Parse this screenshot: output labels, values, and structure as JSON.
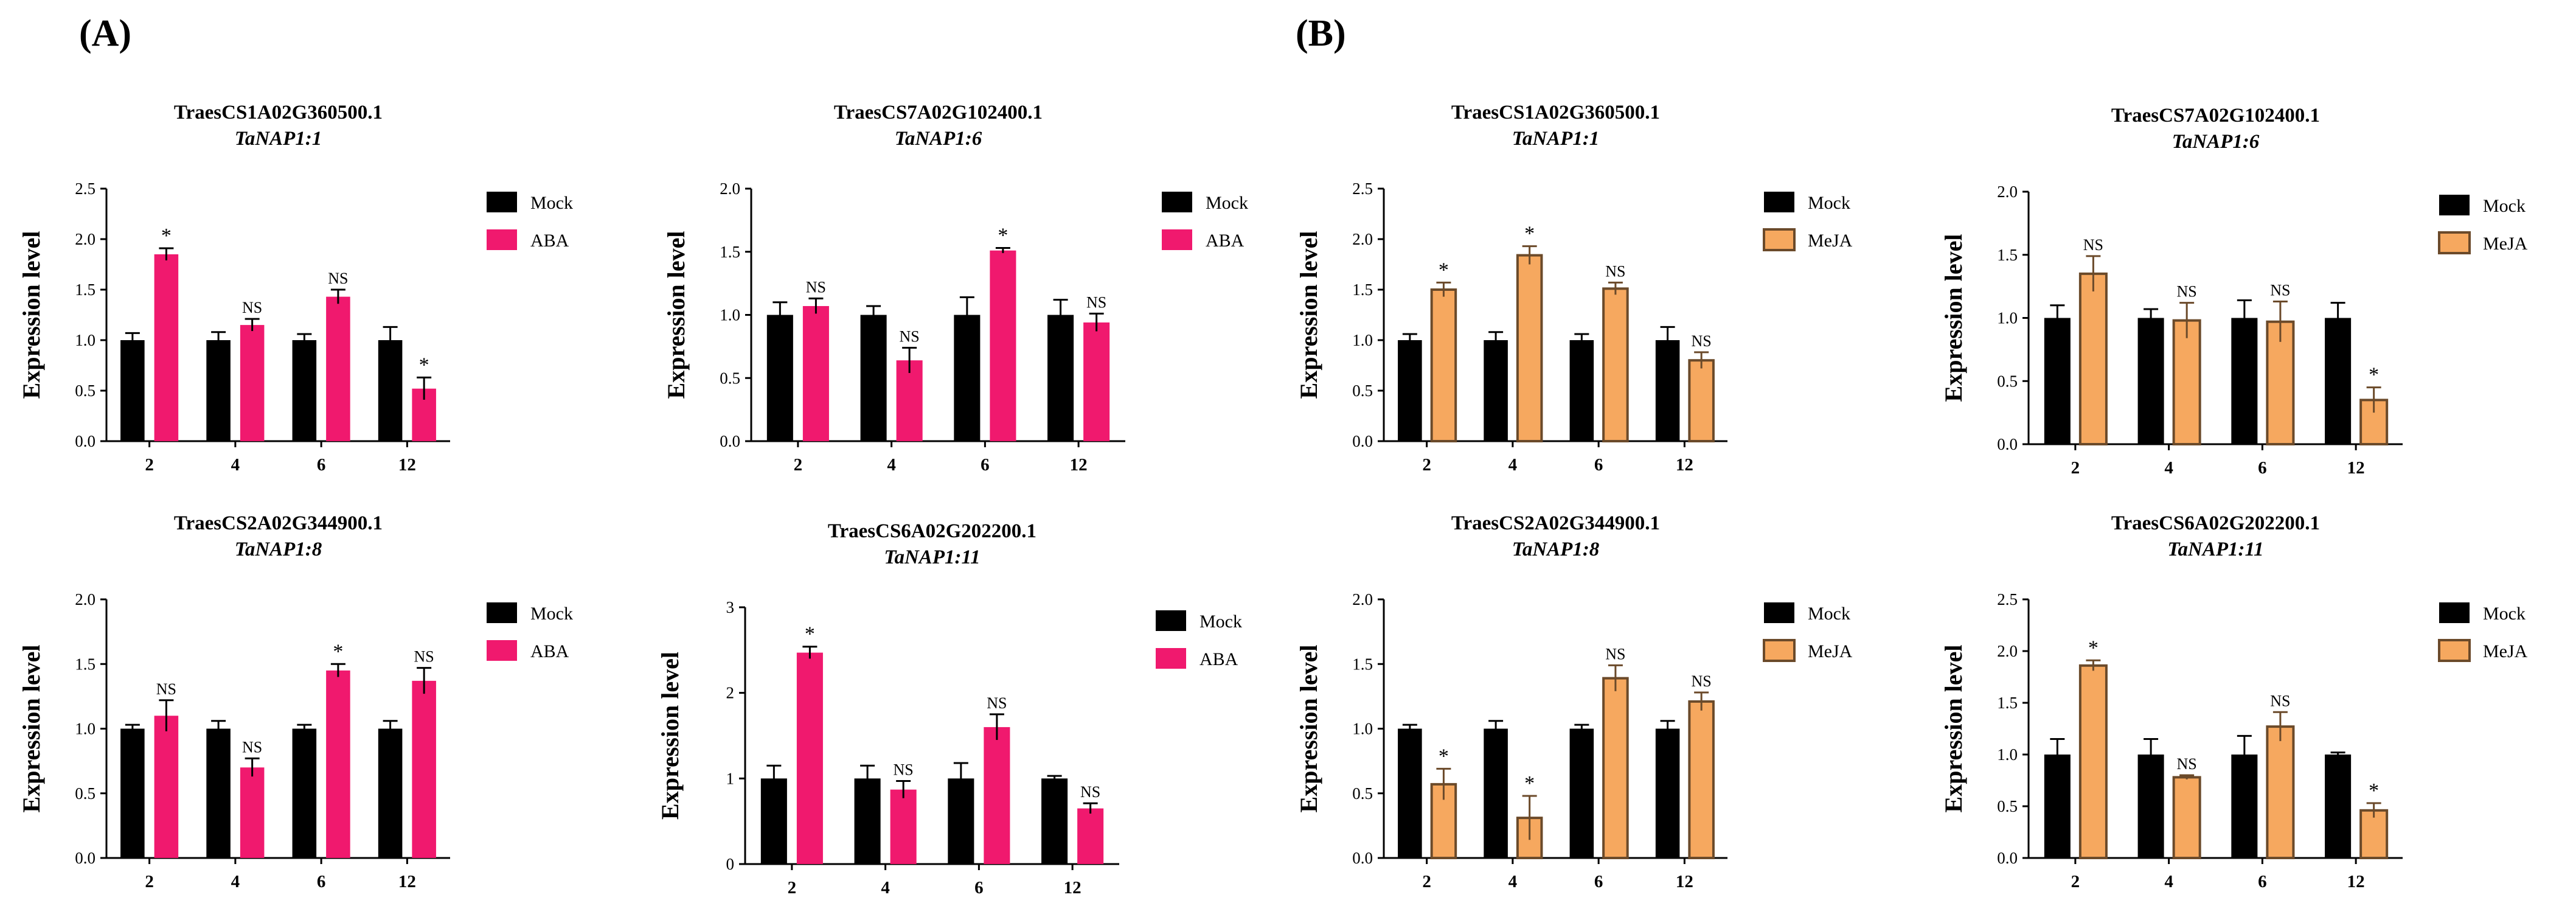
{
  "panels": [
    {
      "label": "(A)"
    },
    {
      "label": "(B)"
    }
  ],
  "common": {
    "ylabel": "Expression level",
    "categories": [
      "2",
      "4",
      "6",
      "12"
    ]
  },
  "chart_data": [
    {
      "type": "bar",
      "panel": "(A)",
      "position": "top-left",
      "title": "TraesCS1A02G360500.1",
      "subtitle": "TaNAP1:1",
      "xlabel": "",
      "ylabel": "Expression level",
      "categories": [
        "2",
        "4",
        "6",
        "12"
      ],
      "ylim": [
        0,
        2.5
      ],
      "yticks": [
        "0.0",
        "0.5",
        "1.0",
        "1.5",
        "2.0",
        "2.5"
      ],
      "series": [
        {
          "name": "Mock",
          "color": "#000000",
          "values": [
            1.0,
            1.0,
            1.0,
            1.0
          ],
          "errors": [
            0.07,
            0.08,
            0.06,
            0.13
          ]
        },
        {
          "name": "ABA",
          "color": "#f0196e",
          "values": [
            1.85,
            1.15,
            1.43,
            0.52
          ],
          "errors": [
            0.06,
            0.06,
            0.07,
            0.11
          ],
          "annotations": [
            "*",
            "NS",
            "NS",
            "*"
          ]
        }
      ],
      "legend": "right"
    },
    {
      "type": "bar",
      "panel": "(A)",
      "position": "top-right",
      "title": "TraesCS7A02G102400.1",
      "subtitle": "TaNAP1:6",
      "xlabel": "",
      "ylabel": "Expression level",
      "categories": [
        "2",
        "4",
        "6",
        "12"
      ],
      "ylim": [
        0,
        2.0
      ],
      "yticks": [
        "0.0",
        "0.5",
        "1.0",
        "1.5",
        "2.0"
      ],
      "series": [
        {
          "name": "Mock",
          "color": "#000000",
          "values": [
            1.0,
            1.0,
            1.0,
            1.0
          ],
          "errors": [
            0.1,
            0.07,
            0.14,
            0.12
          ]
        },
        {
          "name": "ABA",
          "color": "#f0196e",
          "values": [
            1.07,
            0.64,
            1.51,
            0.94
          ],
          "errors": [
            0.06,
            0.1,
            0.02,
            0.07
          ],
          "annotations": [
            "NS",
            "NS",
            "*",
            "NS"
          ]
        }
      ],
      "legend": "right"
    },
    {
      "type": "bar",
      "panel": "(A)",
      "position": "bottom-left",
      "title": "TraesCS2A02G344900.1",
      "subtitle": "TaNAP1:8",
      "xlabel": "",
      "ylabel": "Expression level",
      "categories": [
        "2",
        "4",
        "6",
        "12"
      ],
      "ylim": [
        0,
        2.0
      ],
      "yticks": [
        "0.0",
        "0.5",
        "1.0",
        "1.5",
        "2.0"
      ],
      "series": [
        {
          "name": "Mock",
          "color": "#000000",
          "values": [
            1.0,
            1.0,
            1.0,
            1.0
          ],
          "errors": [
            0.03,
            0.06,
            0.03,
            0.06
          ]
        },
        {
          "name": "ABA",
          "color": "#f0196e",
          "values": [
            1.1,
            0.7,
            1.45,
            1.37
          ],
          "errors": [
            0.12,
            0.07,
            0.05,
            0.1
          ],
          "annotations": [
            "NS",
            "NS",
            "*",
            "NS"
          ]
        }
      ],
      "legend": "right"
    },
    {
      "type": "bar",
      "panel": "(A)",
      "position": "bottom-right",
      "title": "TraesCS6A02G202200.1",
      "subtitle": "TaNAP1:11",
      "xlabel": "",
      "ylabel": "Expression level",
      "categories": [
        "2",
        "4",
        "6",
        "12"
      ],
      "ylim": [
        0,
        3
      ],
      "yticks": [
        "0",
        "1",
        "2",
        "3"
      ],
      "series": [
        {
          "name": "Mock",
          "color": "#000000",
          "values": [
            1.0,
            1.0,
            1.0,
            1.0
          ],
          "errors": [
            0.15,
            0.15,
            0.18,
            0.03
          ]
        },
        {
          "name": "ABA",
          "color": "#f0196e",
          "values": [
            2.47,
            0.87,
            1.6,
            0.65
          ],
          "errors": [
            0.07,
            0.1,
            0.15,
            0.06
          ],
          "annotations": [
            "*",
            "NS",
            "NS",
            "NS"
          ]
        }
      ],
      "legend": "right"
    },
    {
      "type": "bar",
      "panel": "(B)",
      "position": "top-left",
      "title": "TraesCS1A02G360500.1",
      "subtitle": "TaNAP1:1",
      "xlabel": "",
      "ylabel": "Expression level",
      "categories": [
        "2",
        "4",
        "6",
        "12"
      ],
      "ylim": [
        0,
        2.5
      ],
      "yticks": [
        "0.0",
        "0.5",
        "1.0",
        "1.5",
        "2.0",
        "2.5"
      ],
      "series": [
        {
          "name": "Mock",
          "color": "#000000",
          "values": [
            1.0,
            1.0,
            1.0,
            1.0
          ],
          "errors": [
            0.06,
            0.08,
            0.06,
            0.13
          ]
        },
        {
          "name": "MeJA",
          "color": "#f6a85f",
          "values": [
            1.5,
            1.84,
            1.51,
            0.8
          ],
          "errors": [
            0.07,
            0.09,
            0.06,
            0.08
          ],
          "annotations": [
            "*",
            "*",
            "NS",
            "NS"
          ]
        }
      ],
      "legend": "right"
    },
    {
      "type": "bar",
      "panel": "(B)",
      "position": "top-right",
      "title": "TraesCS7A02G102400.1",
      "subtitle": "TaNAP1:6",
      "xlabel": "",
      "ylabel": "Expression level",
      "categories": [
        "2",
        "4",
        "6",
        "12"
      ],
      "ylim": [
        0,
        2.0
      ],
      "yticks": [
        "0.0",
        "0.5",
        "1.0",
        "1.5",
        "2.0"
      ],
      "series": [
        {
          "name": "Mock",
          "color": "#000000",
          "values": [
            1.0,
            1.0,
            1.0,
            1.0
          ],
          "errors": [
            0.1,
            0.07,
            0.14,
            0.12
          ]
        },
        {
          "name": "MeJA",
          "color": "#f6a85f",
          "values": [
            1.35,
            0.98,
            0.97,
            0.35
          ],
          "errors": [
            0.14,
            0.14,
            0.16,
            0.1
          ],
          "annotations": [
            "NS",
            "NS",
            "NS",
            "*"
          ]
        }
      ],
      "legend": "right"
    },
    {
      "type": "bar",
      "panel": "(B)",
      "position": "bottom-left",
      "title": "TraesCS2A02G344900.1",
      "subtitle": "TaNAP1:8",
      "xlabel": "",
      "ylabel": "Expression level",
      "categories": [
        "2",
        "4",
        "6",
        "12"
      ],
      "ylim": [
        0,
        2.0
      ],
      "yticks": [
        "0.0",
        "0.5",
        "1.0",
        "1.5",
        "2.0"
      ],
      "series": [
        {
          "name": "Mock",
          "color": "#000000",
          "values": [
            1.0,
            1.0,
            1.0,
            1.0
          ],
          "errors": [
            0.03,
            0.06,
            0.03,
            0.06
          ]
        },
        {
          "name": "MeJA",
          "color": "#f6a85f",
          "values": [
            0.57,
            0.31,
            1.39,
            1.21
          ],
          "errors": [
            0.12,
            0.17,
            0.1,
            0.07
          ],
          "annotations": [
            "*",
            "*",
            "NS",
            "NS"
          ]
        }
      ],
      "legend": "right"
    },
    {
      "type": "bar",
      "panel": "(B)",
      "position": "bottom-right",
      "title": "TraesCS6A02G202200.1",
      "subtitle": "TaNAP1:11",
      "xlabel": "",
      "ylabel": "Expression level",
      "categories": [
        "2",
        "4",
        "6",
        "12"
      ],
      "ylim": [
        0,
        2.5
      ],
      "yticks": [
        "0.0",
        "0.5",
        "1.0",
        "1.5",
        "2.0",
        "2.5"
      ],
      "series": [
        {
          "name": "Mock",
          "color": "#000000",
          "values": [
            1.0,
            1.0,
            1.0,
            1.0
          ],
          "errors": [
            0.15,
            0.15,
            0.18,
            0.02
          ]
        },
        {
          "name": "MeJA",
          "color": "#f6a85f",
          "values": [
            1.86,
            0.78,
            1.27,
            0.46
          ],
          "errors": [
            0.05,
            0.02,
            0.14,
            0.07
          ],
          "annotations": [
            "*",
            "NS",
            "NS",
            "*"
          ]
        }
      ],
      "legend": "right"
    }
  ]
}
